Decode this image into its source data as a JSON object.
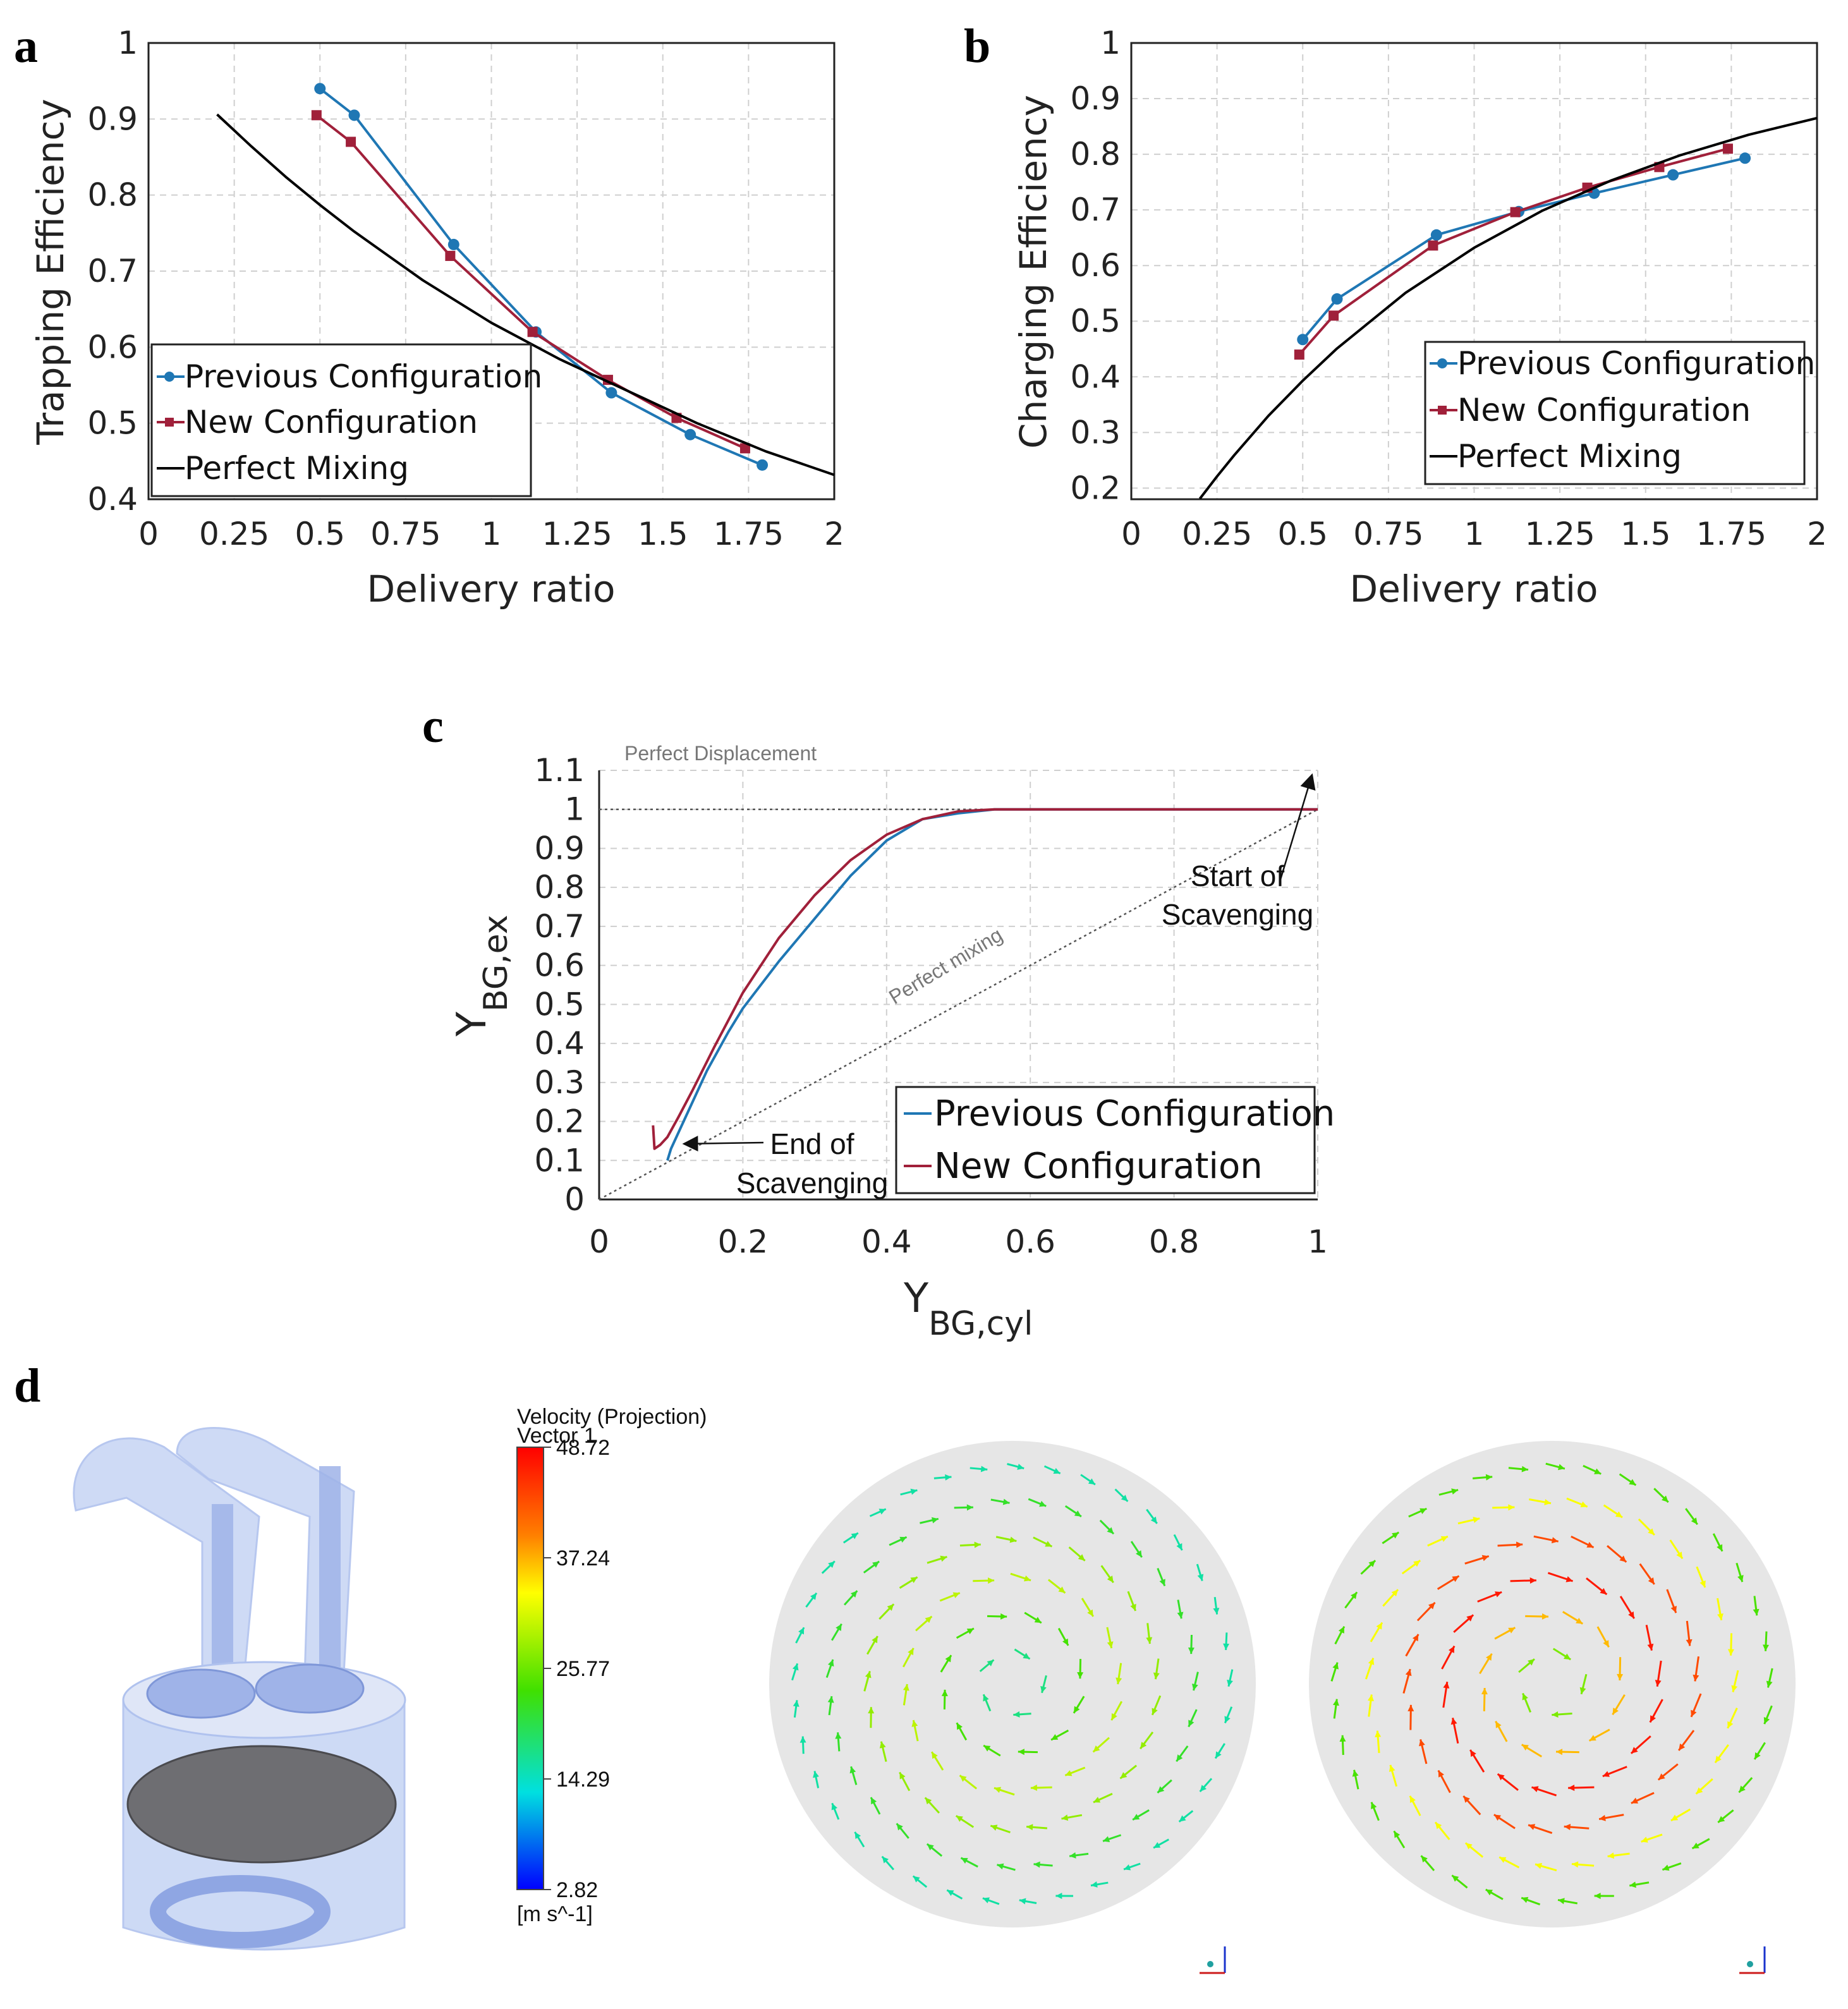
{
  "panels": {
    "a": "a",
    "b": "b",
    "c": "c",
    "d": "d"
  },
  "colors": {
    "previous": "#1f77b4",
    "new": "#a0203a",
    "perfect": "#000000"
  },
  "chart_data": [
    {
      "id": "a",
      "type": "line",
      "title": "",
      "xlabel": "Delivery ratio",
      "ylabel": "Trapping Efficiency",
      "xlim": [
        0,
        2
      ],
      "ylim": [
        0.4,
        1
      ],
      "xticks": [
        "0",
        "0.25",
        "0.5",
        "0.75",
        "1",
        "1.25",
        "1.5",
        "1.75",
        "2"
      ],
      "yticks": [
        "0.4",
        "0.5",
        "0.6",
        "0.7",
        "0.8",
        "0.9",
        "1"
      ],
      "legend": "bottom-left",
      "series": [
        {
          "name": "Previous Configuration",
          "marker": "circle",
          "x": [
            0.5,
            0.6,
            0.89,
            1.13,
            1.35,
            1.58,
            1.79
          ],
          "y": [
            0.94,
            0.905,
            0.735,
            0.62,
            0.54,
            0.485,
            0.445
          ]
        },
        {
          "name": "New Configuration",
          "marker": "square",
          "x": [
            0.49,
            0.59,
            0.88,
            1.12,
            1.34,
            1.54,
            1.74
          ],
          "y": [
            0.905,
            0.87,
            0.72,
            0.62,
            0.557,
            0.507,
            0.467
          ]
        },
        {
          "name": "Perfect Mixing",
          "marker": "none",
          "x": [
            0.2,
            0.25,
            0.3,
            0.4,
            0.5,
            0.6,
            0.8,
            1.0,
            1.2,
            1.4,
            1.6,
            1.8,
            2.0
          ],
          "y": [
            0.906,
            0.885,
            0.864,
            0.824,
            0.787,
            0.752,
            0.688,
            0.632,
            0.584,
            0.542,
            0.5,
            0.463,
            0.432
          ]
        }
      ]
    },
    {
      "id": "b",
      "type": "line",
      "title": "",
      "xlabel": "Delivery ratio",
      "ylabel": "Charging Efficiency",
      "xlim": [
        0,
        2
      ],
      "ylim": [
        0.18,
        1
      ],
      "xticks": [
        "0",
        "0.25",
        "0.5",
        "0.75",
        "1",
        "1.25",
        "1.5",
        "1.75",
        "2"
      ],
      "yticks": [
        "0.2",
        "0.3",
        "0.4",
        "0.5",
        "0.6",
        "0.7",
        "0.8",
        "0.9",
        "1"
      ],
      "legend": "center-right",
      "series": [
        {
          "name": "Previous Configuration",
          "marker": "circle",
          "x": [
            0.5,
            0.6,
            0.89,
            1.13,
            1.35,
            1.58,
            1.79
          ],
          "y": [
            0.467,
            0.54,
            0.655,
            0.697,
            0.73,
            0.763,
            0.793
          ]
        },
        {
          "name": "New Configuration",
          "marker": "square",
          "x": [
            0.49,
            0.59,
            0.88,
            1.12,
            1.33,
            1.54,
            1.74
          ],
          "y": [
            0.44,
            0.51,
            0.636,
            0.696,
            0.74,
            0.777,
            0.81
          ]
        },
        {
          "name": "Perfect Mixing",
          "marker": "none",
          "x": [
            0.2,
            0.25,
            0.3,
            0.4,
            0.5,
            0.6,
            0.8,
            1.0,
            1.2,
            1.4,
            1.6,
            1.8,
            2.0
          ],
          "y": [
            0.181,
            0.221,
            0.259,
            0.33,
            0.393,
            0.451,
            0.551,
            0.632,
            0.699,
            0.753,
            0.798,
            0.835,
            0.865
          ]
        }
      ]
    },
    {
      "id": "c",
      "type": "line",
      "title": "",
      "xlabel_main": "Y",
      "xlabel_sub": "BG,cyl",
      "ylabel_main": "Y",
      "ylabel_sub": "BG,ex",
      "xlim": [
        0,
        1
      ],
      "ylim": [
        0,
        1.1
      ],
      "xticks": [
        "0",
        "0.2",
        "0.4",
        "0.6",
        "0.8",
        "1"
      ],
      "yticks": [
        "0",
        "0.1",
        "0.2",
        "0.3",
        "0.4",
        "0.5",
        "0.6",
        "0.7",
        "0.8",
        "0.9",
        "1",
        "1.1"
      ],
      "legend": "bottom-right",
      "series": [
        {
          "name": "Previous Configuration",
          "marker": "none",
          "x": [
            0.095,
            0.1,
            0.12,
            0.15,
            0.18,
            0.2,
            0.25,
            0.3,
            0.35,
            0.4,
            0.45,
            0.5,
            0.55,
            0.6,
            1.0
          ],
          "y": [
            0.1,
            0.13,
            0.21,
            0.33,
            0.43,
            0.49,
            0.61,
            0.72,
            0.83,
            0.92,
            0.975,
            0.99,
            1.0,
            1.0,
            1.0
          ]
        },
        {
          "name": "New Configuration",
          "marker": "none",
          "x": [
            0.075,
            0.077,
            0.085,
            0.095,
            0.11,
            0.13,
            0.16,
            0.2,
            0.25,
            0.3,
            0.35,
            0.4,
            0.45,
            0.5,
            0.55,
            1.0
          ],
          "y": [
            0.19,
            0.13,
            0.14,
            0.16,
            0.21,
            0.28,
            0.39,
            0.53,
            0.67,
            0.78,
            0.87,
            0.935,
            0.975,
            0.995,
            1.0,
            1.0
          ]
        }
      ],
      "reference_lines": [
        {
          "name": "Perfect Displacement",
          "x": [
            0,
            1
          ],
          "y": [
            1,
            1
          ]
        },
        {
          "name": "Perfect mixing",
          "x": [
            0,
            1
          ],
          "y": [
            0,
            1
          ]
        }
      ],
      "annotations": {
        "start_line1": "Start of",
        "start_line2": "Scavenging",
        "end_line1": "End of",
        "end_line2": "Scavenging"
      }
    }
  ],
  "colorbar": {
    "title": "Velocity (Projection)",
    "subtitle": "Vector 1",
    "unit": "[m s^-1]",
    "ticks": [
      "48.72",
      "37.24",
      "25.77",
      "14.29",
      "2.82"
    ],
    "max": 48.72,
    "min": 2.82
  },
  "fields": {
    "left_max_speed": 30,
    "right_max_speed": 47
  }
}
